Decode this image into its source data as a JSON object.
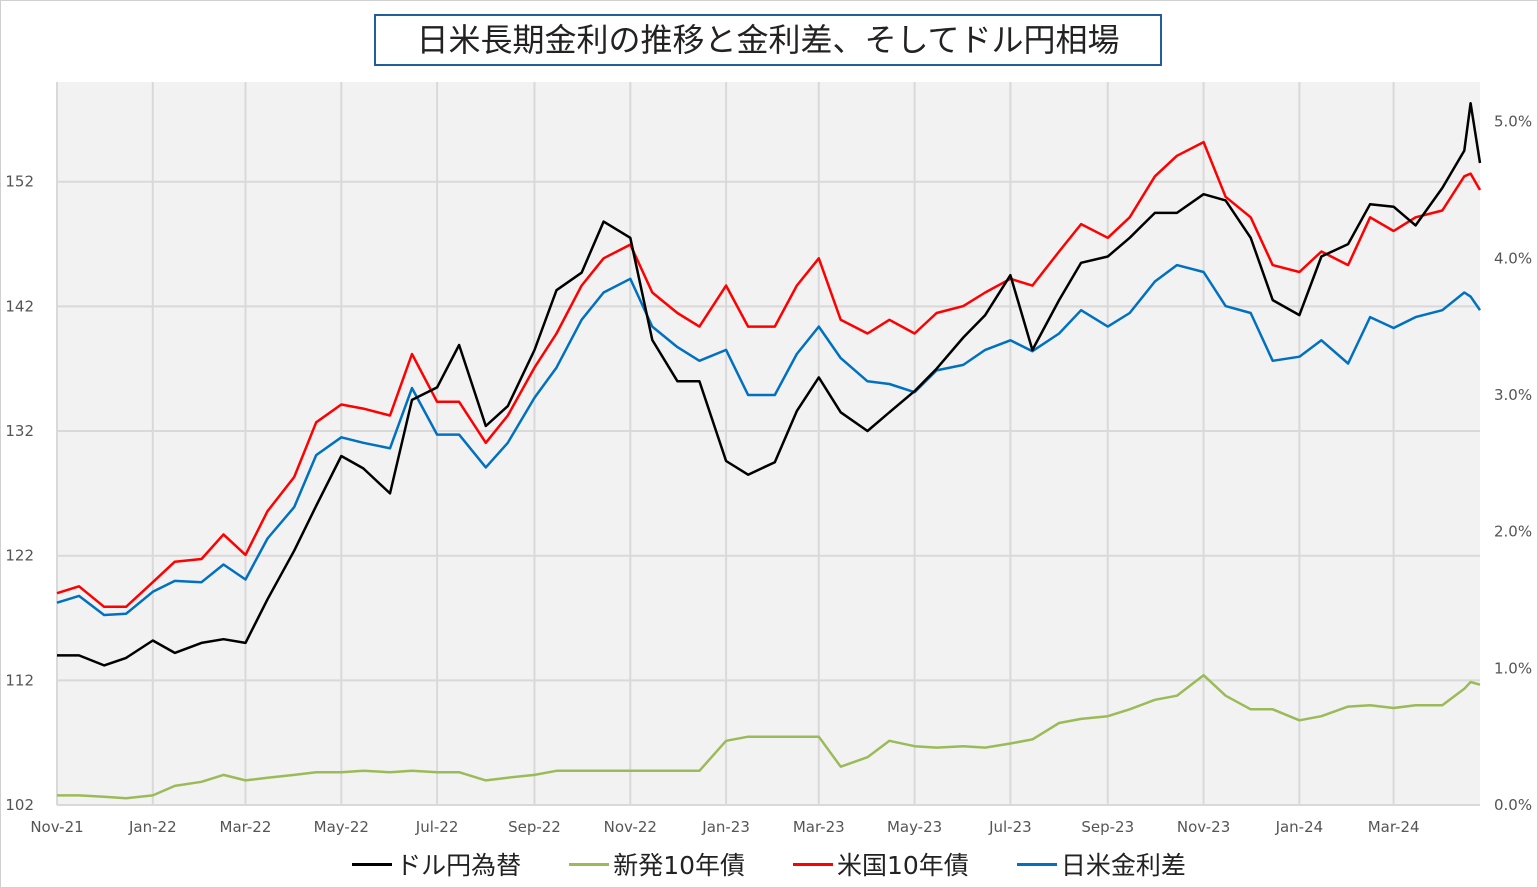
{
  "title": "日米長期金利の推移と金利差、そしてドル円相場",
  "chart_data": {
    "type": "line",
    "title": "日米長期金利の推移と金利差、そしてドル円相場",
    "xlabel": "",
    "ylabel": "",
    "y2label": "",
    "grid": true,
    "legend_position": "bottom",
    "x_ticks": [
      "Nov-21",
      "Jan-22",
      "Mar-22",
      "May-22",
      "Jul-22",
      "Sep-22",
      "Nov-22",
      "Jan-23",
      "Mar-23",
      "May-23",
      "Jul-23",
      "Sep-23",
      "Nov-23",
      "Jan-24",
      "Mar-24"
    ],
    "x_tick_dates": [
      "2021-11-01",
      "2022-01-01",
      "2022-03-01",
      "2022-05-01",
      "2022-07-01",
      "2022-09-01",
      "2022-11-01",
      "2023-01-01",
      "2023-03-01",
      "2023-05-01",
      "2023-07-01",
      "2023-09-01",
      "2023-11-01",
      "2024-01-01",
      "2024-03-01"
    ],
    "xlim": [
      "2021-11-01",
      "2024-04-25"
    ],
    "y_left": {
      "ticks": [
        "102",
        "112",
        "122",
        "132",
        "142",
        "152"
      ],
      "tick_values": [
        102,
        112,
        122,
        132,
        142,
        152
      ],
      "lim": [
        102,
        160
      ]
    },
    "y_right": {
      "ticks": [
        "0.0%",
        "1.0%",
        "2.0%",
        "3.0%",
        "4.0%",
        "5.0%"
      ],
      "tick_values": [
        0,
        1,
        2,
        3,
        4,
        5
      ],
      "lim": [
        0,
        5.29
      ]
    },
    "x": [
      "2021-11-01",
      "2021-11-15",
      "2021-12-01",
      "2021-12-15",
      "2022-01-01",
      "2022-01-15",
      "2022-02-01",
      "2022-02-15",
      "2022-03-01",
      "2022-03-15",
      "2022-04-01",
      "2022-04-15",
      "2022-05-01",
      "2022-05-15",
      "2022-06-01",
      "2022-06-15",
      "2022-07-01",
      "2022-07-15",
      "2022-08-01",
      "2022-08-15",
      "2022-09-01",
      "2022-09-15",
      "2022-10-01",
      "2022-10-15",
      "2022-11-01",
      "2022-11-15",
      "2022-12-01",
      "2022-12-15",
      "2023-01-01",
      "2023-01-15",
      "2023-02-01",
      "2023-02-15",
      "2023-03-01",
      "2023-03-15",
      "2023-04-01",
      "2023-04-15",
      "2023-05-01",
      "2023-05-15",
      "2023-06-01",
      "2023-06-15",
      "2023-07-01",
      "2023-07-15",
      "2023-08-01",
      "2023-08-15",
      "2023-09-01",
      "2023-09-15",
      "2023-10-01",
      "2023-10-15",
      "2023-11-01",
      "2023-11-15",
      "2023-12-01",
      "2023-12-15",
      "2024-01-01",
      "2024-01-15",
      "2024-02-01",
      "2024-02-15",
      "2024-03-01",
      "2024-03-15",
      "2024-04-01",
      "2024-04-15",
      "2024-04-19",
      "2024-04-25"
    ],
    "series": [
      {
        "name": "ドル円為替",
        "axis": "left",
        "color": "#000000",
        "values": [
          114.0,
          114.0,
          113.2,
          113.8,
          115.2,
          114.2,
          115.0,
          115.3,
          115.0,
          118.5,
          122.4,
          126.0,
          130.0,
          129.0,
          127.0,
          134.5,
          135.5,
          138.9,
          132.4,
          134.0,
          138.5,
          143.3,
          144.7,
          148.8,
          147.5,
          139.3,
          136.0,
          136.0,
          129.6,
          128.5,
          129.5,
          133.6,
          136.3,
          133.5,
          132.0,
          133.5,
          135.2,
          137.0,
          139.5,
          141.3,
          144.5,
          138.5,
          142.5,
          145.5,
          146.0,
          147.5,
          149.5,
          149.5,
          151.0,
          150.5,
          147.5,
          142.5,
          141.3,
          146.0,
          147.0,
          150.2,
          150.0,
          148.5,
          151.5,
          154.5,
          158.3,
          153.5
        ]
      },
      {
        "name": "新発10年債",
        "axis": "right",
        "color": "#9bbb59",
        "values": [
          0.07,
          0.07,
          0.06,
          0.05,
          0.07,
          0.14,
          0.17,
          0.22,
          0.18,
          0.2,
          0.22,
          0.24,
          0.24,
          0.25,
          0.24,
          0.25,
          0.24,
          0.24,
          0.18,
          0.2,
          0.22,
          0.25,
          0.25,
          0.25,
          0.25,
          0.25,
          0.25,
          0.25,
          0.47,
          0.5,
          0.5,
          0.5,
          0.5,
          0.28,
          0.35,
          0.47,
          0.43,
          0.42,
          0.43,
          0.42,
          0.45,
          0.48,
          0.6,
          0.63,
          0.65,
          0.7,
          0.77,
          0.8,
          0.95,
          0.8,
          0.7,
          0.7,
          0.62,
          0.65,
          0.72,
          0.73,
          0.71,
          0.73,
          0.73,
          0.85,
          0.9,
          0.88
        ]
      },
      {
        "name": "米国10年債",
        "axis": "right",
        "color": "#ff0000",
        "values": [
          1.55,
          1.6,
          1.45,
          1.45,
          1.63,
          1.78,
          1.8,
          1.98,
          1.83,
          2.15,
          2.4,
          2.8,
          2.93,
          2.9,
          2.85,
          3.3,
          2.95,
          2.95,
          2.65,
          2.85,
          3.2,
          3.45,
          3.8,
          4.0,
          4.1,
          3.75,
          3.6,
          3.5,
          3.8,
          3.5,
          3.5,
          3.8,
          4.0,
          3.55,
          3.45,
          3.55,
          3.45,
          3.6,
          3.65,
          3.75,
          3.85,
          3.8,
          4.05,
          4.25,
          4.15,
          4.3,
          4.6,
          4.75,
          4.85,
          4.45,
          4.3,
          3.95,
          3.9,
          4.05,
          3.95,
          4.3,
          4.2,
          4.3,
          4.35,
          4.6,
          4.62,
          4.5
        ]
      },
      {
        "name": "日米金利差",
        "axis": "right",
        "color": "#0070c0",
        "values": [
          1.48,
          1.53,
          1.39,
          1.4,
          1.56,
          1.64,
          1.63,
          1.76,
          1.65,
          1.95,
          2.18,
          2.56,
          2.69,
          2.65,
          2.61,
          3.05,
          2.71,
          2.71,
          2.47,
          2.65,
          2.98,
          3.2,
          3.55,
          3.75,
          3.85,
          3.5,
          3.35,
          3.25,
          3.33,
          3.0,
          3.0,
          3.3,
          3.5,
          3.27,
          3.1,
          3.08,
          3.02,
          3.18,
          3.22,
          3.33,
          3.4,
          3.32,
          3.45,
          3.62,
          3.5,
          3.6,
          3.83,
          3.95,
          3.9,
          3.65,
          3.6,
          3.25,
          3.28,
          3.4,
          3.23,
          3.57,
          3.49,
          3.57,
          3.62,
          3.75,
          3.72,
          3.62
        ]
      }
    ]
  }
}
